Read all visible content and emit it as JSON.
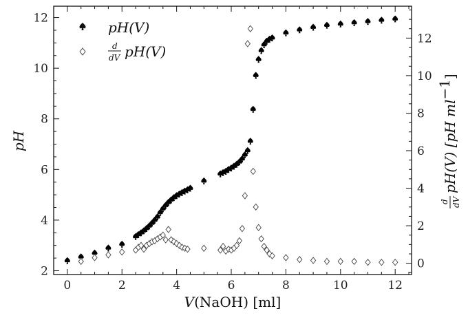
{
  "chart_data": {
    "type": "scatter",
    "xlabel_var": "V",
    "xlabel_rest": "(NaOH) [ml]",
    "ylabel_left": "pH",
    "ylabel_right_frac_num": "d",
    "ylabel_right_frac_den": "dV",
    "ylabel_right_rest": "pH(V) [pH ml",
    "ylabel_right_sup": "−1",
    "ylabel_right_close": "]",
    "xlim": [
      -0.5,
      12.6
    ],
    "ylim_left": [
      1.85,
      12.45
    ],
    "ylim_right": [
      -0.6,
      13.7
    ],
    "xticks": [
      0,
      2,
      4,
      6,
      8,
      10,
      12
    ],
    "yticks_left": [
      2,
      4,
      6,
      8,
      10,
      12
    ],
    "yticks_right": [
      0,
      2,
      4,
      6,
      8,
      10,
      12
    ],
    "legend_position": "top-left",
    "series": [
      {
        "name": "pH(V)",
        "legend_text": "pH(V)",
        "axis": "left",
        "marker": "filled-spade",
        "color": "#000000",
        "x": [
          0.0,
          0.5,
          1.0,
          1.5,
          2.0,
          2.5,
          2.6,
          2.7,
          2.8,
          2.9,
          3.0,
          3.1,
          3.2,
          3.3,
          3.4,
          3.5,
          3.6,
          3.7,
          3.8,
          3.9,
          4.0,
          4.1,
          4.2,
          4.3,
          4.4,
          4.5,
          5.0,
          5.6,
          5.7,
          5.8,
          5.9,
          6.0,
          6.1,
          6.2,
          6.3,
          6.4,
          6.5,
          6.6,
          6.7,
          6.8,
          6.9,
          7.0,
          7.1,
          7.2,
          7.3,
          7.4,
          7.5,
          8.0,
          8.5,
          9.0,
          9.5,
          10.0,
          10.5,
          11.0,
          11.5,
          12.0
        ],
        "y": [
          2.4,
          2.55,
          2.7,
          2.9,
          3.05,
          3.35,
          3.43,
          3.5,
          3.58,
          3.67,
          3.77,
          3.88,
          4.0,
          4.13,
          4.3,
          4.45,
          4.58,
          4.7,
          4.8,
          4.89,
          4.97,
          5.03,
          5.09,
          5.15,
          5.2,
          5.26,
          5.55,
          5.83,
          5.88,
          5.93,
          6.0,
          6.06,
          6.13,
          6.21,
          6.3,
          6.42,
          6.58,
          6.75,
          7.12,
          8.38,
          9.72,
          10.35,
          10.7,
          10.93,
          11.07,
          11.15,
          11.2,
          11.4,
          11.52,
          11.62,
          11.7,
          11.75,
          11.8,
          11.85,
          11.9,
          11.95
        ]
      },
      {
        "name": "d/dV pH(V)",
        "legend_text": "pH(V)",
        "axis": "right",
        "marker": "open-diamond",
        "color": "#444444",
        "x": [
          0.5,
          1.0,
          1.5,
          2.0,
          2.5,
          2.6,
          2.7,
          2.8,
          2.9,
          3.0,
          3.1,
          3.2,
          3.3,
          3.4,
          3.5,
          3.6,
          3.7,
          3.8,
          3.9,
          4.0,
          4.1,
          4.2,
          4.3,
          4.4,
          5.0,
          5.6,
          5.7,
          5.8,
          5.9,
          6.0,
          6.1,
          6.2,
          6.3,
          6.4,
          6.5,
          6.6,
          6.7,
          6.8,
          6.9,
          7.0,
          7.1,
          7.2,
          7.3,
          7.4,
          7.5,
          8.0,
          8.5,
          9.0,
          9.5,
          10.0,
          10.5,
          11.0,
          11.5,
          12.0
        ],
        "y": [
          0.1,
          0.3,
          0.45,
          0.6,
          0.7,
          0.85,
          0.95,
          0.75,
          0.95,
          1.05,
          1.15,
          1.2,
          1.3,
          1.4,
          1.5,
          1.25,
          1.8,
          1.25,
          1.15,
          1.05,
          0.95,
          0.85,
          0.8,
          0.75,
          0.8,
          0.7,
          0.9,
          0.65,
          0.75,
          0.7,
          0.8,
          0.95,
          1.2,
          1.85,
          3.6,
          11.7,
          12.5,
          4.9,
          3.0,
          1.9,
          1.3,
          0.9,
          0.7,
          0.5,
          0.4,
          0.3,
          0.2,
          0.15,
          0.1,
          0.1,
          0.1,
          0.05,
          0.05,
          0.05
        ]
      }
    ]
  }
}
